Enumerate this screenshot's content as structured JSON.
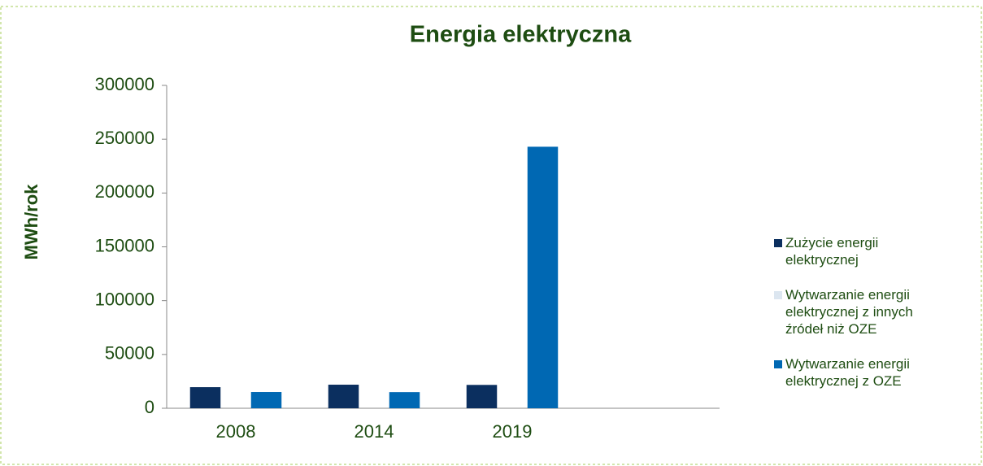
{
  "chart_data": {
    "type": "bar",
    "title": "Energia elektryczna",
    "y_label": "MWh/rok",
    "categories": [
      "2008",
      "2014",
      "2019",
      null
    ],
    "series": [
      {
        "name": "Zużycie energii elektrycznej",
        "color": "#0b2f5f",
        "values": [
          19600,
          21900,
          21700,
          null
        ]
      },
      {
        "name": "Wytwarzanie energii elektrycznej z innych źródeł niż OZE",
        "color": "#dce6f0",
        "values": [
          0,
          0,
          0,
          null
        ]
      },
      {
        "name": "Wytwarzanie energii elektrycznej z OZE",
        "color": "#0068b3",
        "values": [
          15100,
          15000,
          243000,
          null
        ]
      }
    ],
    "ylim": [
      0,
      300000
    ],
    "yticks": [
      0,
      50000,
      100000,
      150000,
      200000,
      250000,
      300000
    ],
    "legend": "right"
  }
}
